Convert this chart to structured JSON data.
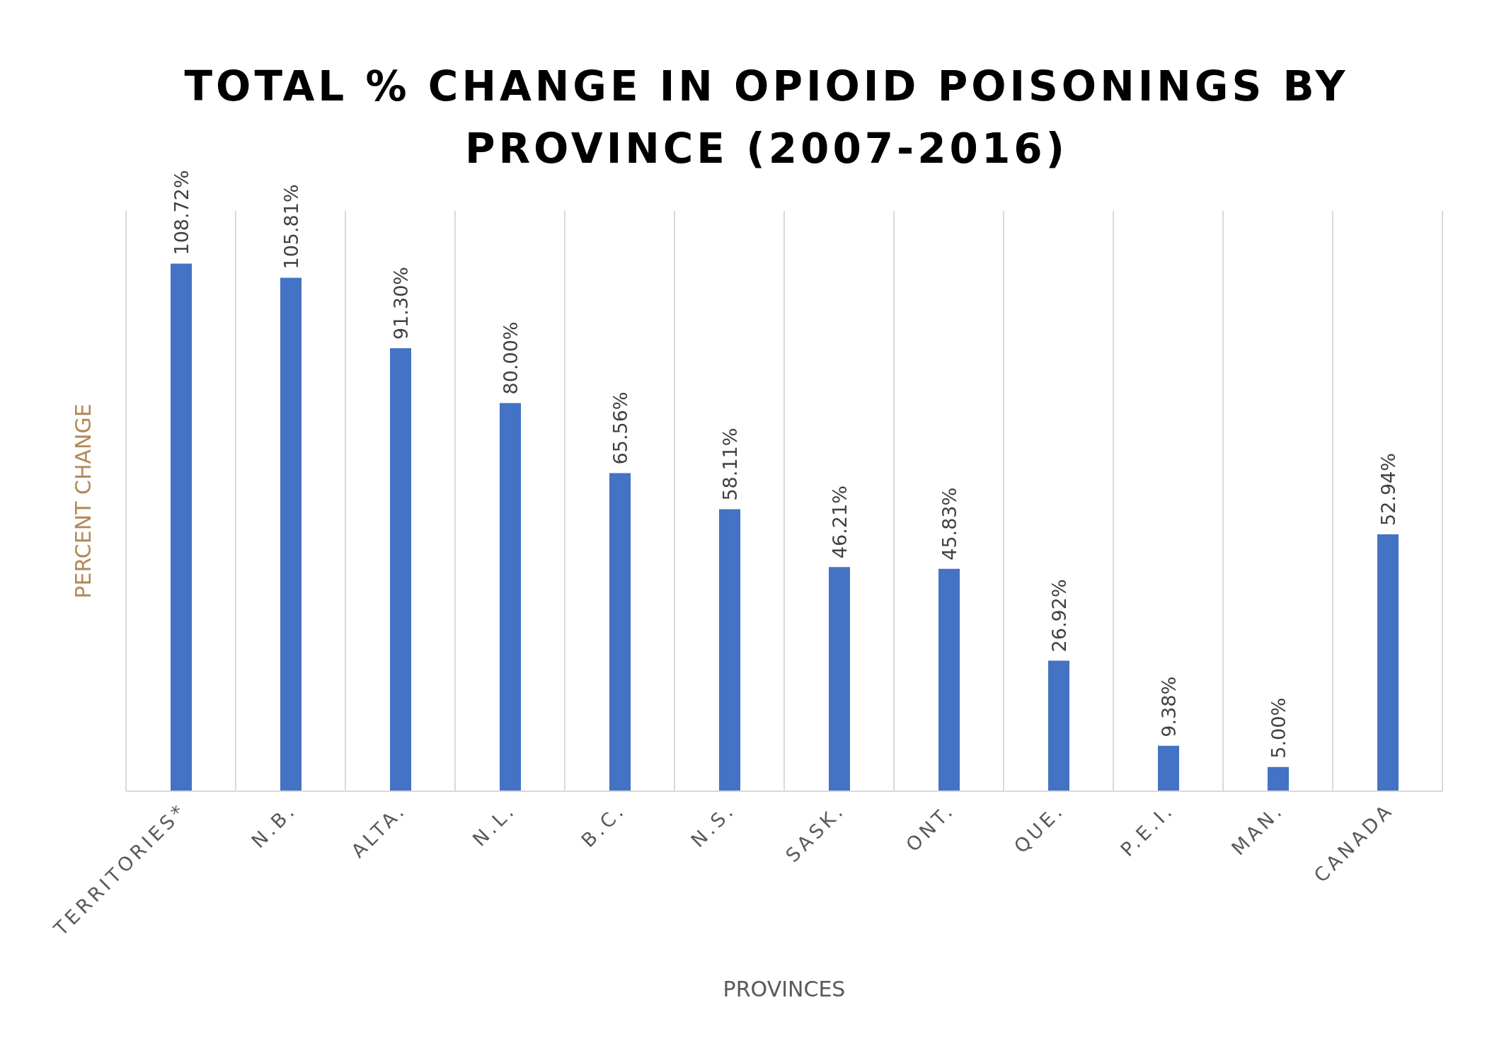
{
  "chart_data": {
    "type": "bar",
    "title": "TOTAL % CHANGE IN OPIOID POISONINGS BY PROVINCE (2007-2016)",
    "xlabel": "PROVINCES",
    "ylabel": "PERCENT CHANGE",
    "categories": [
      "TERRITORIES*",
      "N.B.",
      "ALTA.",
      "N.L.",
      "B.C.",
      "N.S.",
      "SASK.",
      "ONT.",
      "QUE.",
      "P.E.I.",
      "MAN.",
      "CANADA"
    ],
    "values": [
      108.72,
      105.81,
      91.3,
      80.0,
      65.56,
      58.11,
      46.21,
      45.83,
      26.92,
      9.38,
      5.0,
      52.94
    ],
    "value_labels": [
      "108.72%",
      "105.81%",
      "91.30%",
      "80.00%",
      "65.56%",
      "58.11%",
      "46.21%",
      "45.83%",
      "26.92%",
      "9.38%",
      "5.00%",
      "52.94%"
    ],
    "color": "#4472c4",
    "grid": "x"
  }
}
